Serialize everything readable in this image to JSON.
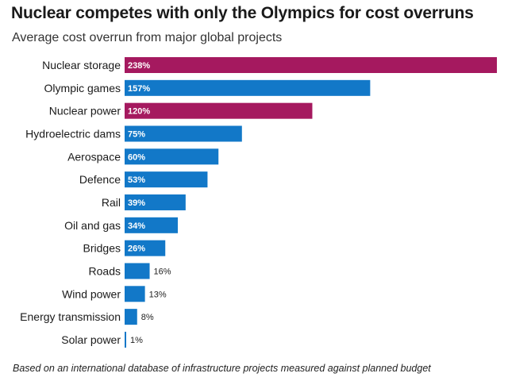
{
  "title": "Nuclear competes with only the Olympics for cost overruns",
  "subtitle": "Average cost overrun from major global projects",
  "footnote": "Based on an international database of infrastructure projects measured against planned budget",
  "colors": {
    "nuclear": "#a5195f",
    "other": "#1278c8",
    "label_inside": "#ffffff",
    "label_outside": "#222222"
  },
  "chart_data": {
    "type": "bar",
    "orientation": "horizontal",
    "title": "Nuclear competes with only the Olympics for cost overruns",
    "subtitle": "Average cost overrun from major global projects",
    "xlabel": "",
    "ylabel": "",
    "unit": "%",
    "xlim": [
      0,
      238
    ],
    "grid": false,
    "categories": [
      "Nuclear storage",
      "Olympic games",
      "Nuclear power",
      "Hydroelectric dams",
      "Aerospace",
      "Defence",
      "Rail",
      "Oil and gas",
      "Bridges",
      "Roads",
      "Wind power",
      "Energy transmission",
      "Solar power"
    ],
    "values": [
      238,
      157,
      120,
      75,
      60,
      53,
      39,
      34,
      26,
      16,
      13,
      8,
      1
    ],
    "value_labels": [
      "238%",
      "157%",
      "120%",
      "75%",
      "60%",
      "53%",
      "39%",
      "34%",
      "26%",
      "16%",
      "13%",
      "8%",
      "1%"
    ],
    "highlight": [
      "nuclear",
      "other",
      "nuclear",
      "other",
      "other",
      "other",
      "other",
      "other",
      "other",
      "other",
      "other",
      "other",
      "other"
    ]
  }
}
